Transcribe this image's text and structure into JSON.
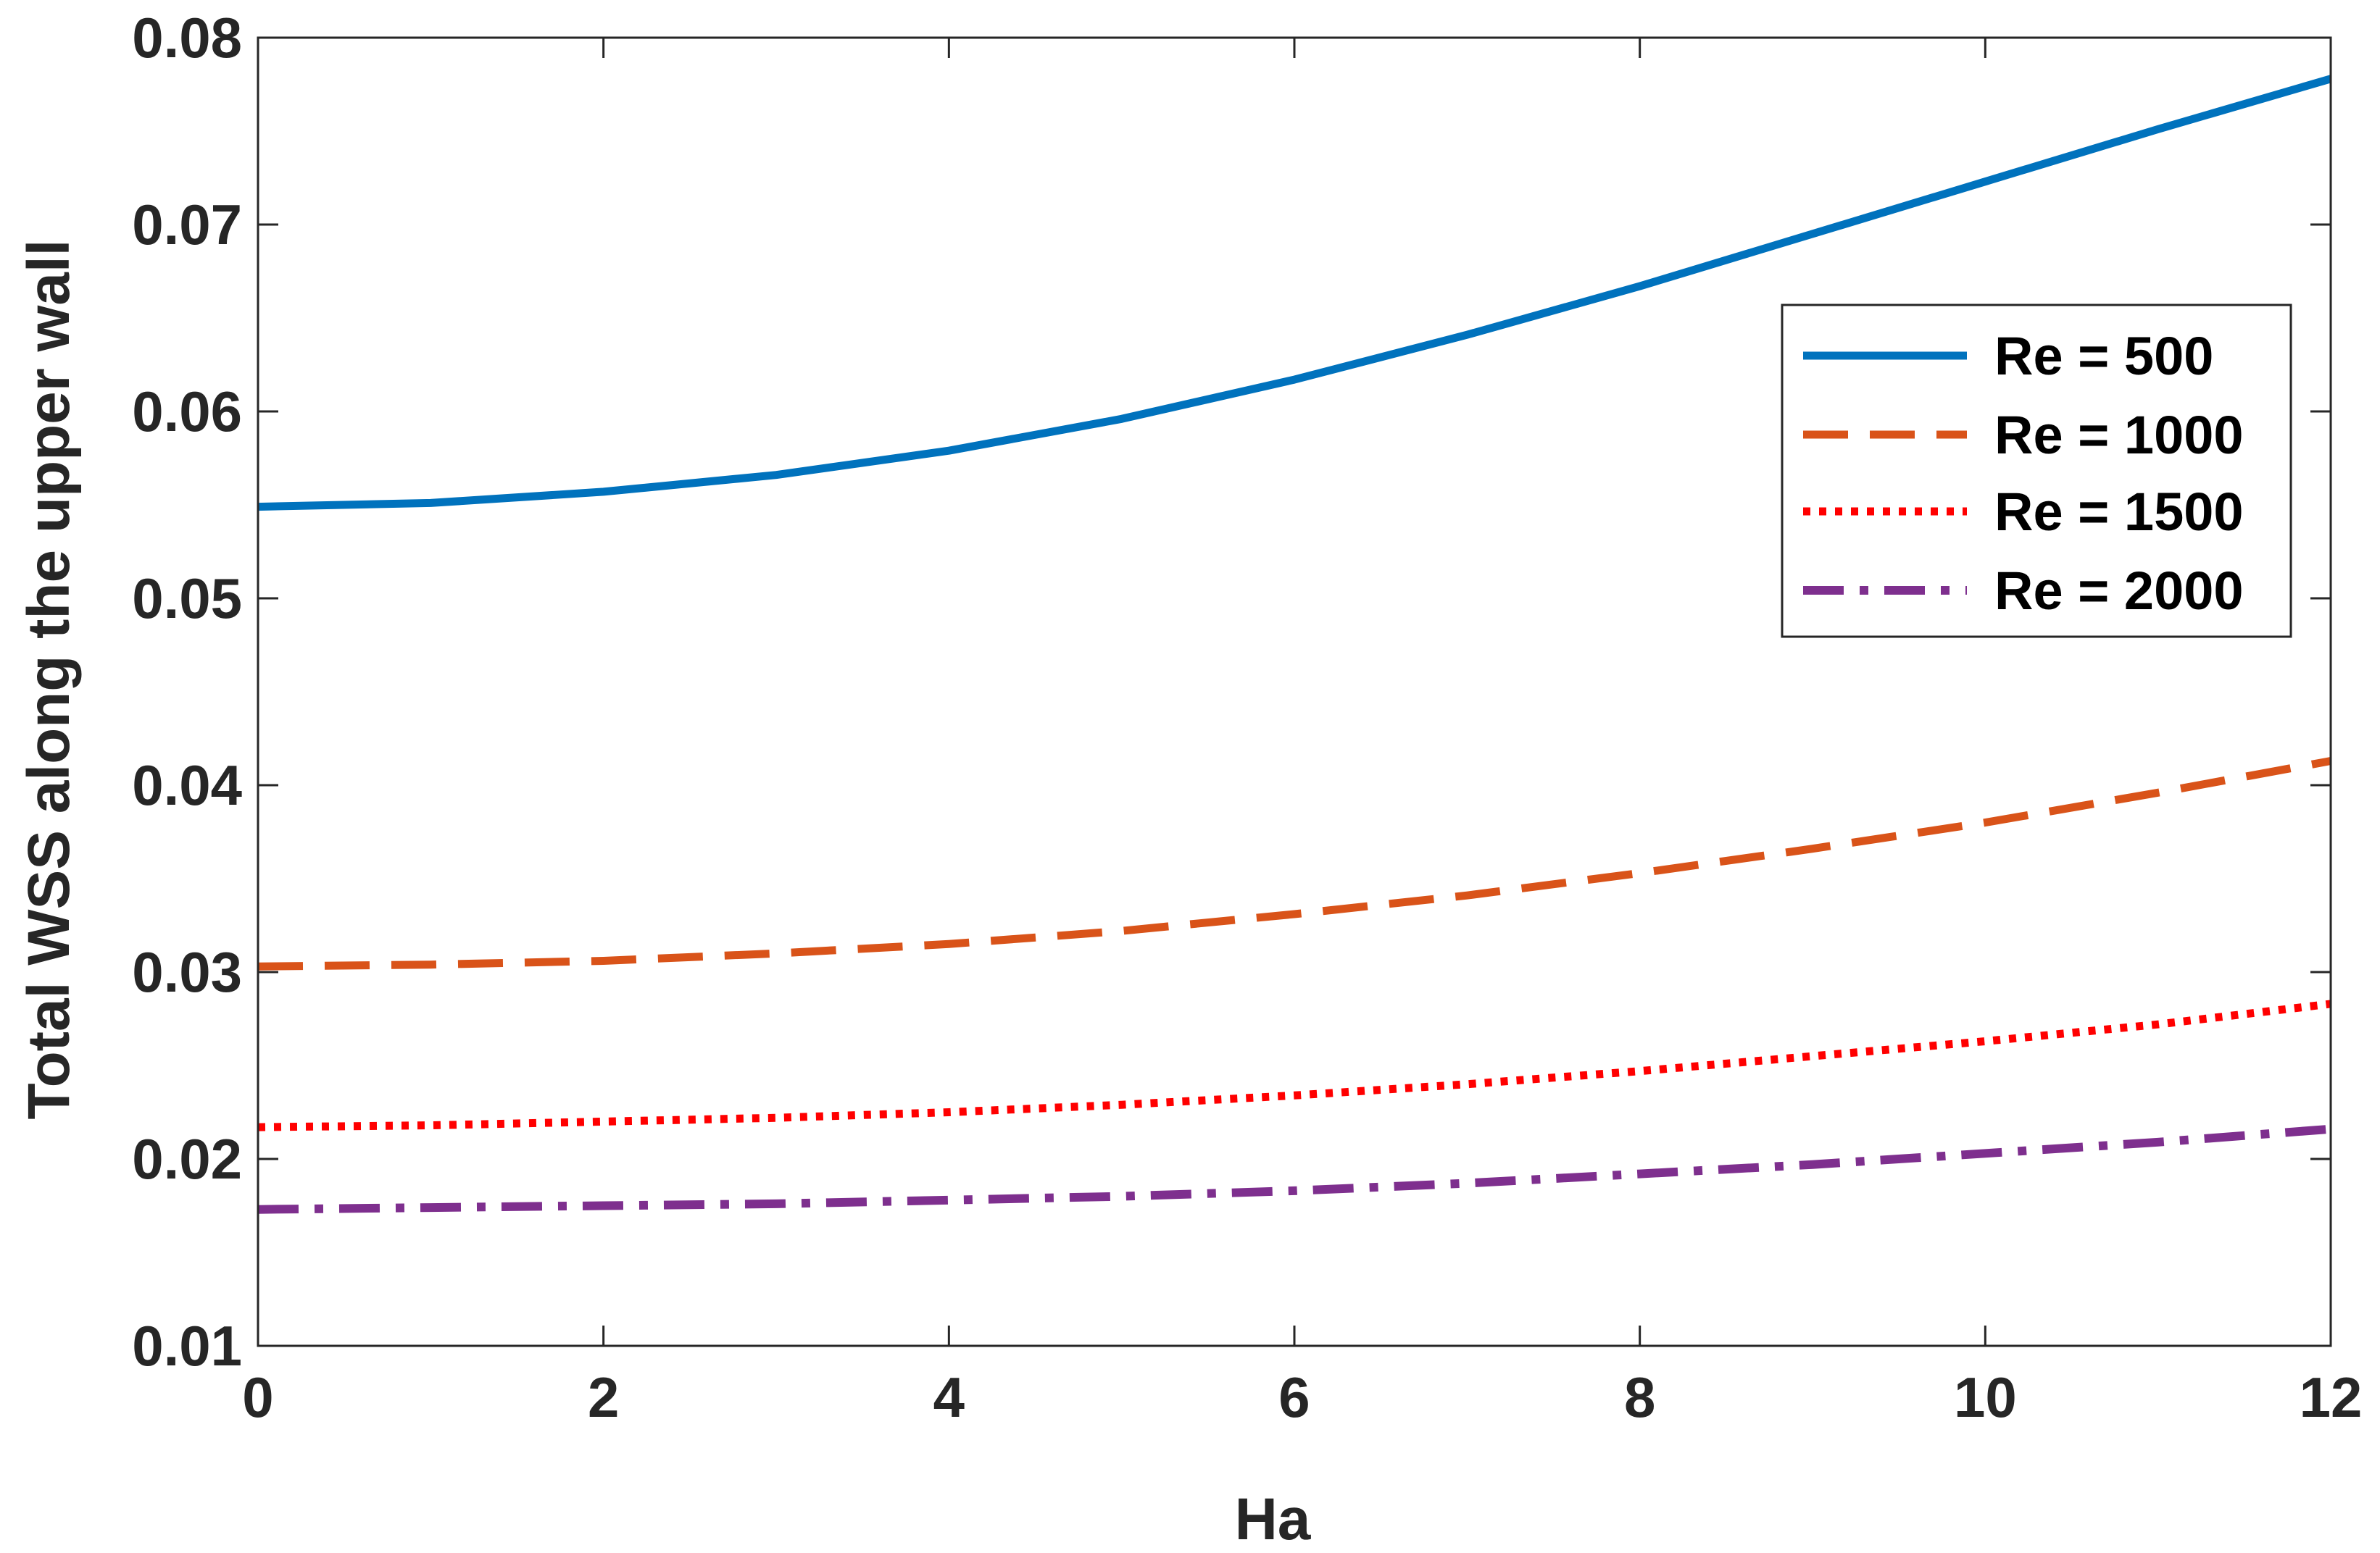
{
  "chart_data": {
    "type": "line",
    "title": "",
    "xlabel": "Ha",
    "ylabel": "Total WSS along the upper wall",
    "xlim": [
      0,
      12
    ],
    "ylim": [
      0.01,
      0.08
    ],
    "x_ticks": [
      "0",
      "2",
      "4",
      "6",
      "8",
      "10",
      "12"
    ],
    "y_ticks": [
      "0.01",
      "0.02",
      "0.03",
      "0.04",
      "0.05",
      "0.06",
      "0.07",
      "0.08"
    ],
    "grid": false,
    "legend_position": "top-right",
    "x": [
      0,
      1,
      2,
      3,
      4,
      5,
      6,
      7,
      8,
      9,
      10,
      11,
      12
    ],
    "series": [
      {
        "name": "Re = 500",
        "color": "#0072BD",
        "style": "solid",
        "values": [
          0.0549,
          0.0551,
          0.0557,
          0.0566,
          0.0579,
          0.0596,
          0.0617,
          0.0641,
          0.0667,
          0.0695,
          0.0723,
          0.0751,
          0.0778
        ]
      },
      {
        "name": "Re = 1000",
        "color": "#D95319",
        "style": "dashed",
        "values": [
          0.0303,
          0.0304,
          0.0306,
          0.031,
          0.0315,
          0.0322,
          0.0331,
          0.0341,
          0.0353,
          0.0366,
          0.038,
          0.0396,
          0.0413
        ]
      },
      {
        "name": "Re = 1500",
        "color": "#FF0000",
        "style": "dotted",
        "values": [
          0.0217,
          0.0218,
          0.022,
          0.0222,
          0.0225,
          0.0229,
          0.0234,
          0.024,
          0.0247,
          0.0255,
          0.0263,
          0.0272,
          0.0283
        ]
      },
      {
        "name": "Re = 2000",
        "color": "#7E2F8E",
        "style": "dashdot",
        "values": [
          0.0173,
          0.0174,
          0.0175,
          0.0176,
          0.0178,
          0.018,
          0.0183,
          0.0187,
          0.0192,
          0.0197,
          0.0203,
          0.0209,
          0.0216
        ]
      }
    ]
  }
}
